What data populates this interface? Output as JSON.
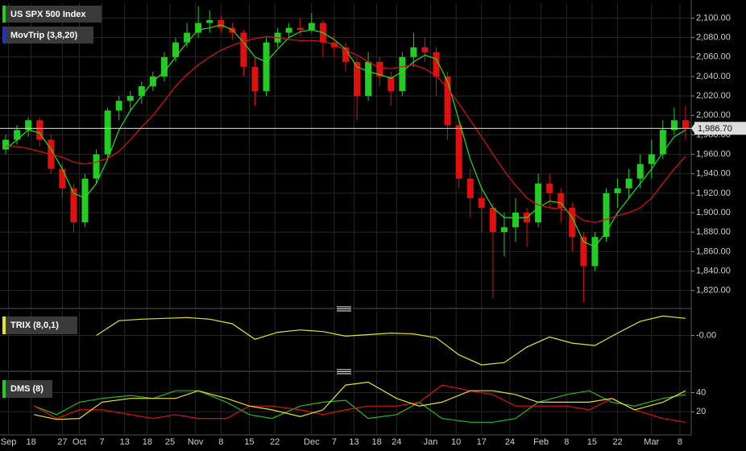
{
  "chart_data": [
    {
      "type": "candlestick",
      "title": "US SPX 500 Index",
      "title_color": "#22cc22",
      "xlim": [
        0,
        122
      ],
      "ylim": [
        1804,
        2112
      ],
      "yticks": [
        {
          "value": 1820,
          "label": "1,820.00"
        },
        {
          "value": 1840,
          "label": "1,840.00"
        },
        {
          "value": 1860,
          "label": "1,860.00"
        },
        {
          "value": 1880,
          "label": "1,880.00"
        },
        {
          "value": 1900,
          "label": "1,900.00"
        },
        {
          "value": 1920,
          "label": "1,920.00"
        },
        {
          "value": 1940,
          "label": "1,940.00"
        },
        {
          "value": 1960,
          "label": "1,960.00"
        },
        {
          "value": 1980,
          "label": "1,980.00"
        },
        {
          "value": 2000,
          "label": "2,000.00"
        },
        {
          "value": 2020,
          "label": "2,020.00"
        },
        {
          "value": 2040,
          "label": "2,040.00"
        },
        {
          "value": 2060,
          "label": "2,060.00"
        },
        {
          "value": 2080,
          "label": "2,080.00"
        },
        {
          "value": 2100,
          "label": "2,100.00"
        }
      ],
      "up_color": "#22cc22",
      "down_color": "#e01010",
      "x": [
        1,
        3,
        5,
        7,
        9,
        11,
        13,
        15,
        17,
        19,
        21,
        23,
        25,
        27,
        29,
        31,
        33,
        35,
        37,
        39,
        41,
        43,
        45,
        47,
        49,
        51,
        53,
        55,
        57,
        59,
        61,
        63,
        65,
        67,
        69,
        71,
        73,
        75,
        77,
        79,
        81,
        83,
        85,
        87,
        89,
        91,
        93,
        95,
        97,
        99,
        101,
        103,
        105,
        107,
        109,
        111,
        113,
        115,
        117,
        119,
        121
      ],
      "ohlc": [
        [
          1965,
          1980,
          1960,
          1975
        ],
        [
          1975,
          1990,
          1970,
          1985
        ],
        [
          1985,
          1998,
          1978,
          1995
        ],
        [
          1995,
          1998,
          1968,
          1975
        ],
        [
          1975,
          1980,
          1940,
          1945
        ],
        [
          1945,
          1950,
          1915,
          1925
        ],
        [
          1925,
          1930,
          1880,
          1890
        ],
        [
          1890,
          1940,
          1885,
          1935
        ],
        [
          1935,
          1965,
          1930,
          1960
        ],
        [
          1960,
          2008,
          1955,
          2005
        ],
        [
          2005,
          2020,
          1995,
          2015
        ],
        [
          2015,
          2025,
          2005,
          2020
        ],
        [
          2020,
          2035,
          2012,
          2030
        ],
        [
          2030,
          2045,
          2025,
          2040
        ],
        [
          2040,
          2065,
          2035,
          2060
        ],
        [
          2060,
          2080,
          2055,
          2075
        ],
        [
          2075,
          2095,
          2070,
          2085
        ],
        [
          2085,
          2112,
          2080,
          2095
        ],
        [
          2095,
          2108,
          2085,
          2098
        ],
        [
          2098,
          2102,
          2085,
          2090
        ],
        [
          2090,
          2095,
          2078,
          2085
        ],
        [
          2085,
          2088,
          2040,
          2050
        ],
        [
          2050,
          2060,
          2010,
          2025
        ],
        [
          2025,
          2080,
          2020,
          2075
        ],
        [
          2075,
          2090,
          2070,
          2085
        ],
        [
          2085,
          2095,
          2080,
          2090
        ],
        [
          2090,
          2100,
          2082,
          2088
        ],
        [
          2088,
          2105,
          2085,
          2095
        ],
        [
          2095,
          2098,
          2060,
          2075
        ],
        [
          2075,
          2085,
          2060,
          2070
        ],
        [
          2070,
          2075,
          2045,
          2055
        ],
        [
          2055,
          2060,
          1995,
          2020
        ],
        [
          2020,
          2065,
          2015,
          2055
        ],
        [
          2055,
          2060,
          2030,
          2040
        ],
        [
          2040,
          2045,
          2010,
          2025
        ],
        [
          2025,
          2065,
          2020,
          2060
        ],
        [
          2060,
          2085,
          2050,
          2070
        ],
        [
          2070,
          2080,
          2055,
          2065
        ],
        [
          2065,
          2070,
          2020,
          2040
        ],
        [
          2040,
          2045,
          1975,
          1990
        ],
        [
          1990,
          1995,
          1925,
          1935
        ],
        [
          1935,
          1945,
          1895,
          1915
        ],
        [
          1915,
          1925,
          1880,
          1905
        ],
        [
          1905,
          1910,
          1812,
          1880
        ],
        [
          1880,
          1900,
          1855,
          1885
        ],
        [
          1885,
          1915,
          1870,
          1900
        ],
        [
          1900,
          1905,
          1865,
          1890
        ],
        [
          1890,
          1940,
          1885,
          1930
        ],
        [
          1930,
          1940,
          1905,
          1920
        ],
        [
          1920,
          1925,
          1890,
          1905
        ],
        [
          1905,
          1910,
          1860,
          1875
        ],
        [
          1875,
          1880,
          1808,
          1845
        ],
        [
          1845,
          1880,
          1840,
          1875
        ],
        [
          1875,
          1925,
          1870,
          1920
        ],
        [
          1920,
          1935,
          1905,
          1925
        ],
        [
          1925,
          1945,
          1915,
          1935
        ],
        [
          1935,
          1960,
          1925,
          1950
        ],
        [
          1950,
          1975,
          1935,
          1960
        ],
        [
          1960,
          1995,
          1955,
          1985
        ],
        [
          1985,
          2008,
          1980,
          1995
        ],
        [
          1995,
          2010,
          1975,
          1987
        ]
      ],
      "overlay_name": "MovTrip (3,8,20)",
      "overlay_color": "#2233cc",
      "series": [
        {
          "color": "#22dd22",
          "values": [
            1965,
            1975,
            1985,
            1982,
            1965,
            1945,
            1920,
            1915,
            1930,
            1955,
            1985,
            2005,
            2020,
            2035,
            2045,
            2060,
            2075,
            2088,
            2090,
            2093,
            2088,
            2075,
            2060,
            2055,
            2068,
            2080,
            2086,
            2088,
            2085,
            2078,
            2068,
            2050,
            2045,
            2042,
            2038,
            2045,
            2055,
            2062,
            2058,
            2035,
            1995,
            1955,
            1925,
            1905,
            1895,
            1895,
            1895,
            1905,
            1912,
            1910,
            1895,
            1870,
            1865,
            1880,
            1900,
            1915,
            1930,
            1945,
            1962,
            1978,
            1985
          ]
        },
        {
          "color": "#dd1111",
          "values": [
            1968,
            1968,
            1966,
            1963,
            1960,
            1957,
            1952,
            1950,
            1952,
            1956,
            1963,
            1975,
            1988,
            2000,
            2015,
            2030,
            2042,
            2052,
            2060,
            2067,
            2072,
            2076,
            2079,
            2081,
            2080,
            2078,
            2077,
            2077,
            2076,
            2073,
            2067,
            2062,
            2055,
            2049,
            2048,
            2050,
            2052,
            2048,
            2041,
            2028,
            2012,
            1995,
            1978,
            1960,
            1943,
            1928,
            1915,
            1908,
            1905,
            1904,
            1900,
            1892,
            1890,
            1893,
            1897,
            1900,
            1905,
            1915,
            1930,
            1945,
            1958
          ]
        }
      ],
      "last": {
        "value": 1986.7,
        "label": "1,986.70"
      }
    },
    {
      "type": "line",
      "title": "TRIX (8,0,1)",
      "title_color": "#e8e030",
      "xlim": [
        0,
        122
      ],
      "ylim": [
        -0.16,
        0.11
      ],
      "yticks": [
        {
          "value": 0,
          "label": "-0.00"
        }
      ],
      "x": [
        17,
        21,
        25,
        29,
        33,
        37,
        41,
        45,
        49,
        53,
        57,
        61,
        65,
        69,
        73,
        77,
        81,
        85,
        89,
        93,
        97,
        101,
        105,
        109,
        113,
        117,
        121
      ],
      "series": [
        {
          "color": "#e8e030",
          "values": [
            0,
            0.076,
            0.084,
            0.088,
            0.092,
            0.084,
            0.06,
            -0.02,
            0.016,
            0.028,
            0.02,
            -0.004,
            0.004,
            0.012,
            0.008,
            -0.012,
            -0.1,
            -0.152,
            -0.14,
            -0.06,
            -0.008,
            -0.04,
            -0.052,
            0.012,
            0.072,
            0.1,
            0.088
          ]
        }
      ]
    },
    {
      "type": "line",
      "title": "DMS (8)",
      "title_color": "#22cc22",
      "xlim": [
        0,
        122
      ],
      "ylim": [
        0,
        59
      ],
      "yticks": [
        20,
        40
      ],
      "xticks": [
        {
          "value": 1.5,
          "label": "Sep"
        },
        {
          "value": 5.5,
          "label": "18"
        },
        {
          "value": 11,
          "label": "27"
        },
        {
          "value": 14,
          "label": "Oct"
        },
        {
          "value": 18,
          "label": "7"
        },
        {
          "value": 22,
          "label": "13"
        },
        {
          "value": 26,
          "label": "18"
        },
        {
          "value": 30,
          "label": "25"
        },
        {
          "value": 34.5,
          "label": "Nov"
        },
        {
          "value": 39,
          "label": "8"
        },
        {
          "value": 44,
          "label": "15"
        },
        {
          "value": 48.5,
          "label": "22"
        },
        {
          "value": 55,
          "label": "Dec"
        },
        {
          "value": 59,
          "label": "7"
        },
        {
          "value": 62.5,
          "label": "13"
        },
        {
          "value": 66.5,
          "label": "18"
        },
        {
          "value": 70,
          "label": "24"
        },
        {
          "value": 76,
          "label": "Jan"
        },
        {
          "value": 80.5,
          "label": "10"
        },
        {
          "value": 85,
          "label": "17"
        },
        {
          "value": 90,
          "label": "24"
        },
        {
          "value": 95.5,
          "label": "Feb"
        },
        {
          "value": 100,
          "label": "8"
        },
        {
          "value": 104.5,
          "label": "15"
        },
        {
          "value": 109,
          "label": "22"
        },
        {
          "value": 115,
          "label": "Mar"
        },
        {
          "value": 120,
          "label": "8"
        }
      ],
      "x": [
        6,
        10,
        14,
        18,
        23,
        27,
        31,
        35,
        40,
        44,
        48,
        53,
        57,
        61,
        65,
        70,
        74,
        78,
        83,
        87,
        91,
        95,
        100,
        104,
        108,
        112,
        117,
        121
      ],
      "series": [
        {
          "color": "#22bb22",
          "values": [
            26,
            17,
            30,
            34,
            37,
            34,
            42,
            42,
            30,
            17,
            13,
            26,
            30,
            32,
            13,
            17,
            30,
            13,
            9,
            9,
            13,
            30,
            38,
            42,
            30,
            26,
            34,
            38
          ]
        },
        {
          "color": "#dd1111",
          "values": [
            26,
            13,
            22,
            22,
            17,
            13,
            17,
            13,
            13,
            26,
            26,
            22,
            17,
            22,
            26,
            26,
            30,
            48,
            42,
            38,
            26,
            26,
            26,
            22,
            34,
            22,
            13,
            9
          ]
        },
        {
          "color": "#e8e030",
          "values": [
            17,
            12,
            13,
            30,
            34,
            34,
            34,
            42,
            34,
            26,
            22,
            15,
            22,
            48,
            51,
            34,
            26,
            30,
            42,
            42,
            38,
            30,
            30,
            30,
            34,
            22,
            30,
            42
          ]
        }
      ]
    }
  ]
}
